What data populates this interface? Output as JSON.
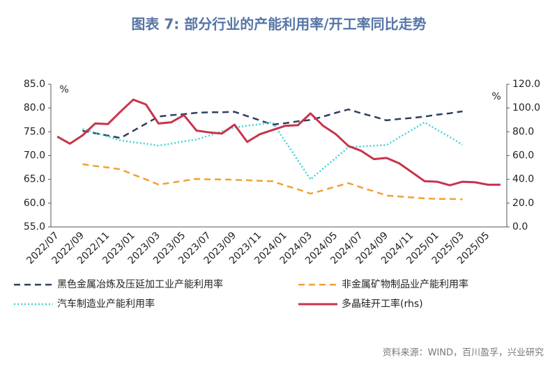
{
  "chart_data": {
    "type": "line",
    "title": "图表 7:   部分行业的产能利用率/开工率同比走势",
    "y_unit": "%",
    "y2_unit": "%",
    "source": "资料来源：WIND，百川盈孚，兴业研究",
    "categories": [
      "2022/07",
      null,
      "2022/09",
      null,
      "2022/11",
      null,
      "2023/01",
      null,
      "2023/03",
      null,
      "2023/05",
      null,
      "2023/07",
      null,
      "2023/09",
      null,
      "2023/11",
      null,
      "2024/01",
      null,
      "2024/03",
      null,
      "2024/05",
      null,
      "2024/07",
      null,
      "2024/09",
      null,
      "2024/11",
      null,
      "2025/01",
      null,
      "2025/03",
      null,
      "2025/05",
      null
    ],
    "ylim": [
      55,
      85
    ],
    "yticks": [
      {
        "value": 55,
        "label": "55.0"
      },
      {
        "value": 60,
        "label": "60.0"
      },
      {
        "value": 65,
        "label": "65.0"
      },
      {
        "value": 70,
        "label": "70.0"
      },
      {
        "value": 75,
        "label": "75.0"
      },
      {
        "value": 80,
        "label": "80.0"
      },
      {
        "value": 85,
        "label": "85.0"
      }
    ],
    "y2lim": [
      0,
      120
    ],
    "y2ticks": [
      {
        "value": 0,
        "label": "0.0"
      },
      {
        "value": 20,
        "label": "20.0"
      },
      {
        "value": 40,
        "label": "40.0"
      },
      {
        "value": 60,
        "label": "60.0"
      },
      {
        "value": 80,
        "label": "80.0"
      },
      {
        "value": 100,
        "label": "100.0"
      },
      {
        "value": 120,
        "label": "120.0"
      }
    ],
    "grid": false,
    "series": [
      {
        "name": "黑色金属冶炼及压延加工业产能利用率",
        "color": "#2e3f5e",
        "dash": "dashed",
        "values": [
          null,
          null,
          75.2,
          74.7,
          74.2,
          73.7,
          75.2,
          76.7,
          78.2,
          78.5,
          78.7,
          79.0,
          79.1,
          79.1,
          79.2,
          78.3,
          77.4,
          76.5,
          76.8,
          77.2,
          77.5,
          78.2,
          79.0,
          79.7,
          78.9,
          78.2,
          77.4,
          77.7,
          77.9,
          78.2,
          78.6,
          78.9,
          79.3,
          null,
          null,
          null
        ]
      },
      {
        "name": "非金属矿物制品业产能利用率",
        "color": "#f0a133",
        "dash": "dashed",
        "values": [
          null,
          null,
          68.2,
          67.8,
          67.5,
          67.1,
          66.0,
          65.0,
          63.9,
          64.3,
          64.7,
          65.1,
          65.0,
          65.0,
          64.9,
          64.8,
          64.7,
          64.6,
          63.7,
          62.9,
          62.0,
          62.7,
          63.5,
          64.2,
          63.3,
          62.5,
          61.6,
          61.4,
          61.2,
          61.0,
          60.9,
          60.9,
          60.8,
          null,
          null,
          null
        ]
      },
      {
        "name": "汽车制造业产能利用率",
        "color": "#3fd2d4",
        "dash": "dotted",
        "values": [
          null,
          null,
          75.6,
          74.8,
          74.0,
          73.2,
          72.8,
          72.5,
          72.1,
          72.5,
          73.0,
          73.4,
          74.2,
          75.1,
          75.9,
          76.3,
          76.6,
          77.0,
          73.0,
          69.0,
          65.0,
          67.3,
          69.5,
          71.8,
          71.9,
          72.1,
          72.2,
          73.8,
          75.4,
          77.0,
          75.4,
          73.9,
          72.3,
          null,
          null,
          null
        ]
      },
      {
        "name": "多晶硅开工率(rhs)",
        "color": "#c8334b",
        "dash": "solid",
        "axis": "y2",
        "values": [
          76,
          70,
          77,
          87,
          86.5,
          97,
          107,
          103,
          87,
          88,
          94,
          81,
          79.5,
          78.5,
          86,
          71.5,
          78,
          81.5,
          85,
          85.5,
          95.5,
          85,
          78,
          68,
          64,
          57,
          58,
          53.5,
          46,
          38.5,
          38,
          35,
          38,
          37.5,
          35.5,
          35.5
        ]
      }
    ]
  }
}
